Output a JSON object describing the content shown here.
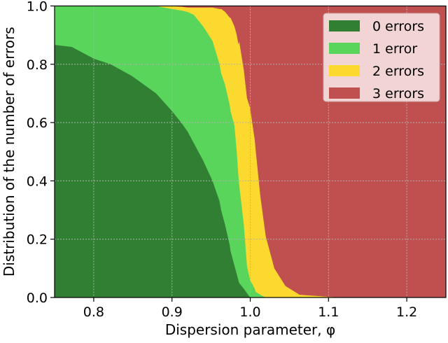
{
  "chart_data": {
    "type": "area",
    "stacked": true,
    "title": "",
    "xlabel": "Dispersion parameter, φ",
    "ylabel": "Distribution of the number of errors",
    "xlim": [
      0.75,
      1.25
    ],
    "ylim": [
      0.0,
      1.0
    ],
    "xticks": [
      0.8,
      0.9,
      1.0,
      1.1,
      1.2
    ],
    "xtick_labels": [
      "0.8",
      "0.9",
      "1.0",
      "1.1",
      "1.2"
    ],
    "yticks": [
      0.0,
      0.2,
      0.4,
      0.6,
      0.8,
      1.0
    ],
    "ytick_labels": [
      "0.0",
      "0.2",
      "0.4",
      "0.6",
      "0.8",
      "1.0"
    ],
    "grid": true,
    "legend_position": "upper right",
    "x": [
      0.75,
      0.772,
      0.8,
      0.822,
      0.849,
      0.88,
      0.9,
      0.912,
      0.92,
      0.928,
      0.94,
      0.952,
      0.961,
      0.963,
      0.968,
      0.974,
      0.975,
      0.98,
      0.983,
      0.985,
      0.986,
      0.992,
      0.996,
      1.0,
      1.006,
      1.007,
      1.013,
      1.02,
      1.031,
      1.045,
      1.063,
      1.1,
      1.12,
      1.25
    ],
    "series": [
      {
        "name": "0 errors",
        "color": "#317f33",
        "values": [
          0.867,
          0.86,
          0.82,
          0.8,
          0.76,
          0.7,
          0.64,
          0.6,
          0.57,
          0.53,
          0.47,
          0.4,
          0.33,
          0.3,
          0.25,
          0.18,
          0.16,
          0.11,
          0.08,
          0.06,
          0.05,
          0.03,
          0.015,
          0.0,
          0.0,
          0.0,
          0.0,
          0.0,
          0.0,
          0.0,
          0.0,
          0.0,
          0.0,
          0.0
        ]
      },
      {
        "name": "1 error",
        "color": "#5ad55c",
        "values": [
          0.133,
          0.14,
          0.18,
          0.2,
          0.24,
          0.3,
          0.35,
          0.385,
          0.41,
          0.44,
          0.46,
          0.48,
          0.47,
          0.47,
          0.48,
          0.48,
          0.48,
          0.48,
          0.42,
          0.36,
          0.34,
          0.22,
          0.095,
          0.06,
          0.03,
          0.02,
          0.01,
          0.0,
          0.0,
          0.0,
          0.0,
          0.0,
          0.0,
          0.0
        ]
      },
      {
        "name": "2 errors",
        "color": "#fcd92f",
        "values": [
          0.0,
          0.0,
          0.0,
          0.0,
          0.0,
          0.0,
          0.01,
          0.013,
          0.015,
          0.025,
          0.065,
          0.115,
          0.19,
          0.22,
          0.25,
          0.3,
          0.32,
          0.34,
          0.4,
          0.45,
          0.49,
          0.53,
          0.575,
          0.59,
          0.51,
          0.49,
          0.34,
          0.21,
          0.1,
          0.04,
          0.01,
          0.003,
          0.0,
          0.0
        ]
      },
      {
        "name": "3 errors",
        "color": "#c04f4f",
        "values": [
          0.0,
          0.0,
          0.0,
          0.0,
          0.0,
          0.0,
          0.0,
          0.002,
          0.005,
          0.005,
          0.005,
          0.005,
          0.01,
          0.01,
          0.02,
          0.04,
          0.04,
          0.07,
          0.1,
          0.13,
          0.12,
          0.22,
          0.315,
          0.41,
          0.46,
          0.49,
          0.65,
          0.79,
          0.9,
          0.96,
          0.99,
          0.997,
          1.0,
          1.0
        ]
      }
    ]
  },
  "colors": {
    "axis": "#000000",
    "grid": "#b0b0b0",
    "legend_bg": "#f6e0e0",
    "legend_border": "#d0a8a8"
  }
}
